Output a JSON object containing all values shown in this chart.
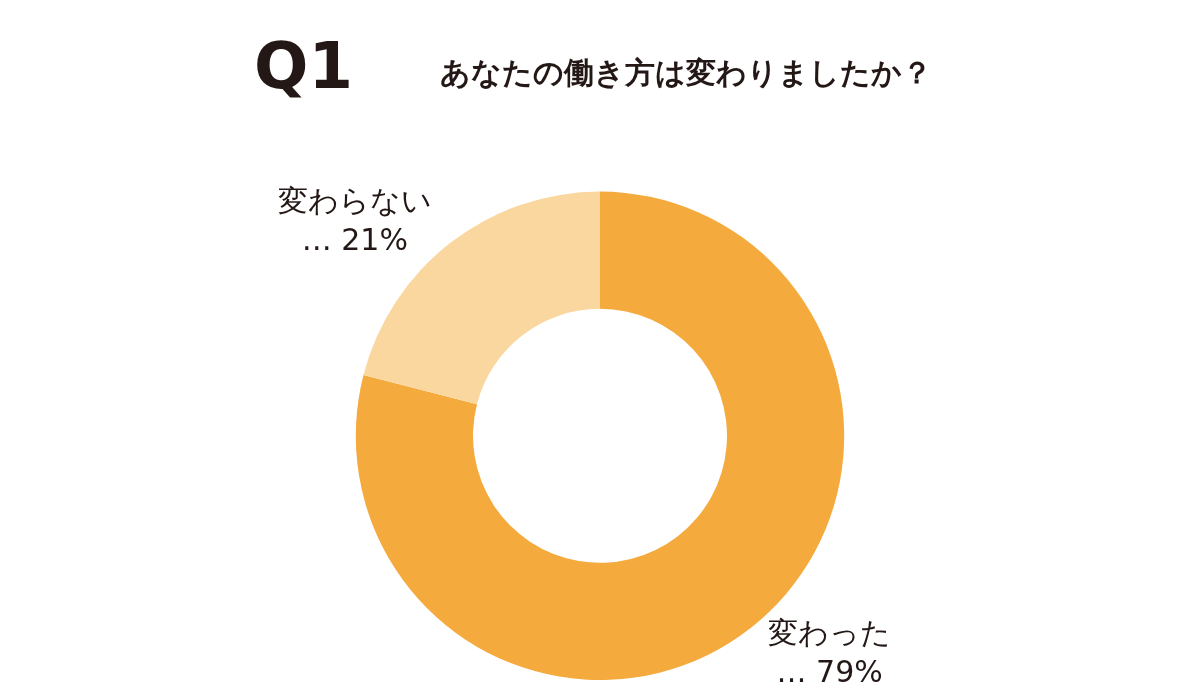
{
  "chart_data": {
    "type": "donut",
    "title": "Q1",
    "subtitle": "あなたの働き方は変わりましたか？",
    "categories": [
      "変わった",
      "変わらない"
    ],
    "values": [
      79,
      21
    ],
    "value_labels": [
      "… 79%",
      "… 21%"
    ],
    "colors": [
      "#f4aa3c",
      "#fbd7a0"
    ],
    "legend": false
  }
}
